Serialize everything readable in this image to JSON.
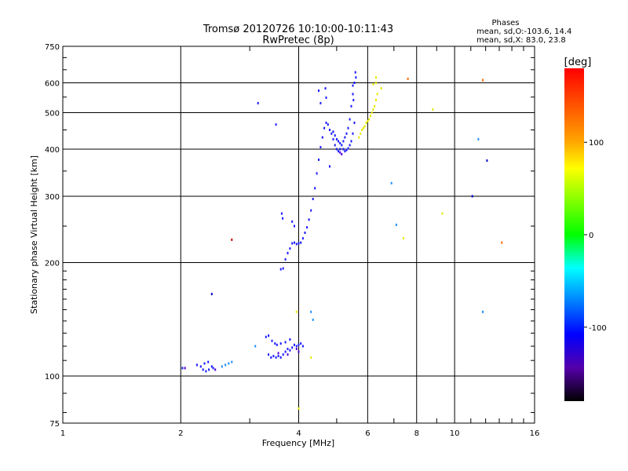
{
  "chart_data": {
    "type": "scatter",
    "title": "Tromsø 20120726 10:10:00-10:11:43",
    "subtitle": "RwPretec (8p)",
    "xlabel": "Frequency [MHz]",
    "ylabel": "Stationary phase Virtual Height [km]",
    "x_scale": "log",
    "y_scale": "log",
    "xlim": [
      1,
      16
    ],
    "ylim": [
      75,
      750
    ],
    "x_ticks": [
      1,
      2,
      4,
      6,
      8,
      10,
      16
    ],
    "y_ticks": [
      75,
      100,
      200,
      300,
      400,
      500,
      600,
      750
    ],
    "grid": true,
    "phase_box": {
      "title": "Phases",
      "line1": "mean, sd,O:-103.6, 14.4",
      "line2": "mean, sd,X:  83.0, 23.8"
    },
    "colorbar": {
      "label": "[deg]",
      "range": [
        -180,
        180
      ],
      "ticks": [
        100,
        0,
        -100
      ],
      "colors": [
        "#ff0000",
        "#ffff00",
        "#00ff00",
        "#00ffff",
        "#0000ff",
        "#000000"
      ]
    },
    "series": [
      {
        "color": "#1a1aff",
        "points": [
          [
            2.02,
            105
          ],
          [
            2.2,
            107
          ],
          [
            2.25,
            106
          ],
          [
            2.28,
            104
          ],
          [
            2.32,
            103
          ],
          [
            2.36,
            104
          ],
          [
            2.4,
            106
          ],
          [
            2.42,
            105
          ],
          [
            2.3,
            108
          ],
          [
            2.35,
            109
          ],
          [
            3.35,
            114
          ],
          [
            3.4,
            112
          ],
          [
            3.45,
            113
          ],
          [
            3.5,
            112
          ],
          [
            3.55,
            113
          ],
          [
            3.6,
            112
          ],
          [
            3.65,
            114
          ],
          [
            3.7,
            116
          ],
          [
            3.75,
            118
          ],
          [
            3.8,
            117
          ],
          [
            3.85,
            119
          ],
          [
            3.9,
            121
          ],
          [
            3.95,
            120
          ],
          [
            4.0,
            121
          ],
          [
            4.05,
            122
          ],
          [
            4.1,
            120
          ],
          [
            3.3,
            127
          ],
          [
            3.35,
            128
          ],
          [
            3.42,
            124
          ],
          [
            3.48,
            122
          ],
          [
            3.52,
            121
          ],
          [
            3.6,
            122
          ],
          [
            3.7,
            123
          ],
          [
            3.8,
            125
          ],
          [
            3.6,
            192
          ],
          [
            3.65,
            193
          ],
          [
            3.7,
            204
          ],
          [
            3.75,
            212
          ],
          [
            3.8,
            218
          ],
          [
            3.85,
            225
          ],
          [
            3.9,
            226
          ],
          [
            3.95,
            224
          ],
          [
            4.0,
            225
          ],
          [
            4.05,
            226
          ],
          [
            4.1,
            232
          ],
          [
            4.15,
            240
          ],
          [
            4.2,
            248
          ],
          [
            4.25,
            260
          ],
          [
            4.3,
            275
          ],
          [
            4.35,
            295
          ],
          [
            4.4,
            315
          ],
          [
            4.45,
            345
          ],
          [
            4.5,
            375
          ],
          [
            4.55,
            405
          ],
          [
            4.6,
            430
          ],
          [
            4.65,
            455
          ],
          [
            4.7,
            470
          ],
          [
            4.75,
            465
          ],
          [
            4.8,
            450
          ],
          [
            4.85,
            440
          ],
          [
            4.9,
            425
          ],
          [
            4.95,
            410
          ],
          [
            5.0,
            400
          ],
          [
            5.05,
            395
          ],
          [
            5.1,
            400
          ],
          [
            5.15,
            410
          ],
          [
            5.2,
            420
          ],
          [
            5.25,
            430
          ],
          [
            5.3,
            440
          ],
          [
            5.35,
            455
          ],
          [
            5.4,
            480
          ],
          [
            5.45,
            520
          ],
          [
            5.5,
            560
          ],
          [
            5.55,
            600
          ],
          [
            5.58,
            640
          ],
          [
            5.6,
            620
          ],
          [
            5.5,
            590
          ],
          [
            5.52,
            540
          ],
          [
            5.2,
            400
          ],
          [
            5.25,
            395
          ],
          [
            5.3,
            398
          ],
          [
            5.35,
            402
          ],
          [
            5.4,
            410
          ],
          [
            5.45,
            420
          ],
          [
            5.5,
            440
          ],
          [
            5.55,
            470
          ],
          [
            4.9,
            445
          ],
          [
            4.95,
            435
          ],
          [
            5.0,
            425
          ],
          [
            5.05,
            420
          ],
          [
            5.1,
            415
          ],
          [
            4.7,
            548
          ],
          [
            4.68,
            580
          ],
          [
            4.5,
            572
          ],
          [
            4.55,
            530
          ],
          [
            3.62,
            270
          ],
          [
            3.64,
            262
          ],
          [
            3.85,
            257
          ],
          [
            3.9,
            250
          ],
          [
            3.5,
            465
          ],
          [
            3.15,
            530
          ],
          [
            4.8,
            360
          ]
        ]
      },
      {
        "color": "#5000dd",
        "points": [
          [
            2.05,
            105
          ],
          [
            2.45,
            104
          ],
          [
            3.55,
            115
          ],
          [
            3.75,
            114
          ],
          [
            3.95,
            118
          ],
          [
            4.0,
            116
          ],
          [
            5.1,
            392
          ],
          [
            5.15,
            388
          ]
        ]
      },
      {
        "color": "#1e90ff",
        "points": [
          [
            2.6,
            107
          ],
          [
            2.65,
            108
          ],
          [
            2.7,
            109
          ],
          [
            2.55,
            106
          ],
          [
            3.1,
            120
          ],
          [
            4.3,
            148
          ],
          [
            4.35,
            141
          ],
          [
            7.1,
            252
          ],
          [
            11.8,
            148
          ],
          [
            11.5,
            425
          ],
          [
            6.9,
            325
          ]
        ]
      },
      {
        "color": "#e8e800",
        "points": [
          [
            5.7,
            430
          ],
          [
            5.75,
            440
          ],
          [
            5.8,
            450
          ],
          [
            5.85,
            455
          ],
          [
            5.9,
            460
          ],
          [
            5.95,
            470
          ],
          [
            6.0,
            475
          ],
          [
            6.05,
            480
          ],
          [
            6.1,
            490
          ],
          [
            6.15,
            500
          ],
          [
            6.2,
            510
          ],
          [
            6.25,
            520
          ],
          [
            6.3,
            540
          ],
          [
            6.35,
            560
          ],
          [
            6.3,
            600
          ],
          [
            6.3,
            620
          ],
          [
            6.2,
            595
          ],
          [
            6.5,
            580
          ],
          [
            8.8,
            510
          ],
          [
            4.0,
            82
          ],
          [
            4.3,
            112
          ],
          [
            9.3,
            270
          ],
          [
            7.4,
            232
          ],
          [
            3.95,
            148
          ]
        ]
      },
      {
        "color": "#ff6a00",
        "points": [
          [
            7.6,
            615
          ],
          [
            11.8,
            610
          ],
          [
            13.2,
            226
          ]
        ]
      },
      {
        "color": "#cc0000",
        "points": [
          [
            2.7,
            230
          ]
        ]
      },
      {
        "color": "#0000cc",
        "points": [
          [
            2.4,
            165
          ],
          [
            12.1,
            373
          ],
          [
            11.1,
            300
          ]
        ]
      }
    ]
  }
}
